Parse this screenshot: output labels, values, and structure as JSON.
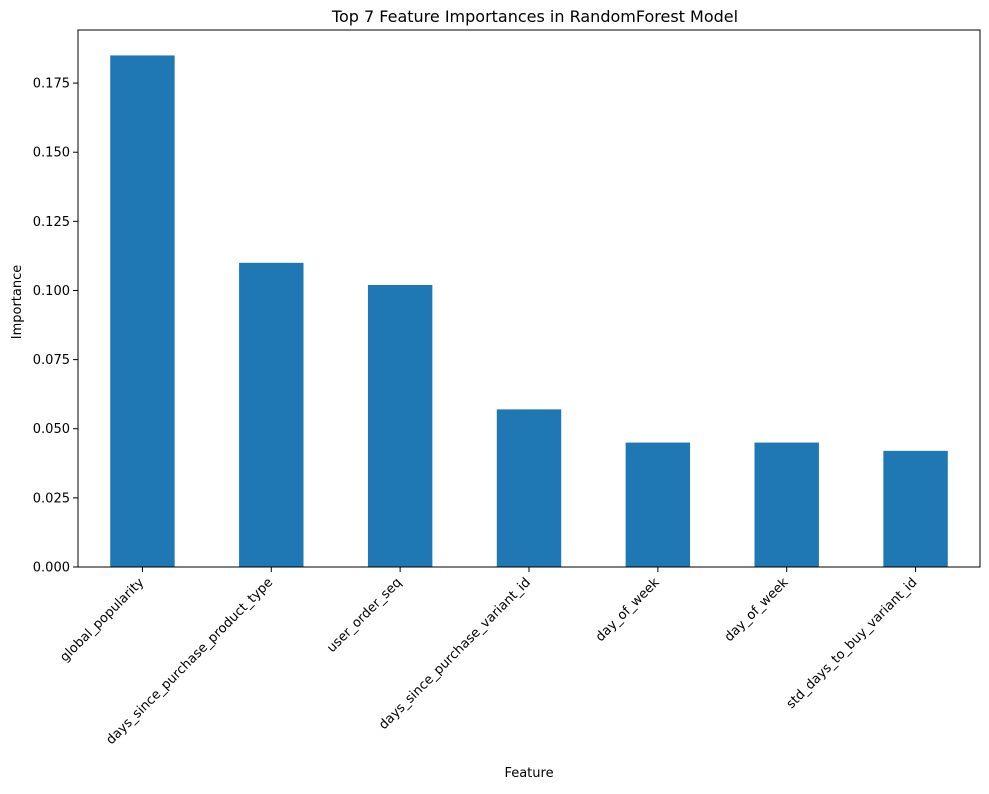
{
  "chart_data": {
    "type": "bar",
    "title": "Top 7 Feature Importances in RandomForest Model",
    "xlabel": "Feature",
    "ylabel": "Importance",
    "categories": [
      "global_popularity",
      "days_since_purchase_product_type",
      "user_order_seq",
      "days_since_purchase_variant_id",
      "day_of_week",
      "day_of_week",
      "std_days_to_buy_variant_id"
    ],
    "values": [
      0.185,
      0.11,
      0.102,
      0.057,
      0.045,
      0.045,
      0.042
    ],
    "ylim": [
      0,
      0.1942
    ],
    "yticks": [
      0.0,
      0.025,
      0.05,
      0.075,
      0.1,
      0.125,
      0.15,
      0.175
    ],
    "ytick_labels": [
      "0.000",
      "0.025",
      "0.050",
      "0.075",
      "0.100",
      "0.125",
      "0.150",
      "0.175"
    ],
    "bar_color": "#1f77b4",
    "grid": false,
    "legend": false
  }
}
